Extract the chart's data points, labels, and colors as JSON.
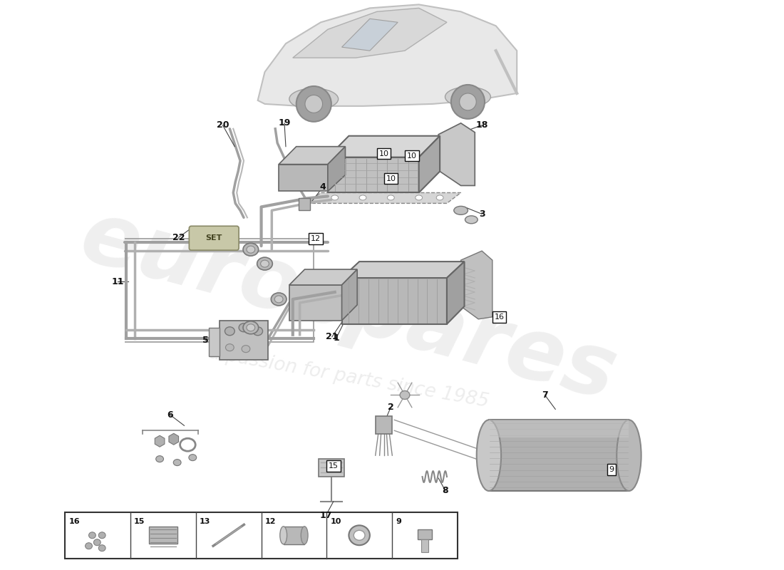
{
  "background_color": "#ffffff",
  "watermark_text": "eurospares",
  "watermark_subtext": "a passion for parts since 1985",
  "watermark_color": "#d0d0d0",
  "line_color": "#444444",
  "label_color": "#111111",
  "box_color": "#111111",
  "part_color_light": "#d8d8d8",
  "part_color_mid": "#b8b8b8",
  "part_color_dark": "#909090",
  "legend_items": [
    {
      "num": "16"
    },
    {
      "num": "15"
    },
    {
      "num": "13"
    },
    {
      "num": "12"
    },
    {
      "num": "10"
    },
    {
      "num": "9"
    }
  ],
  "fig_width": 11.0,
  "fig_height": 8.0
}
